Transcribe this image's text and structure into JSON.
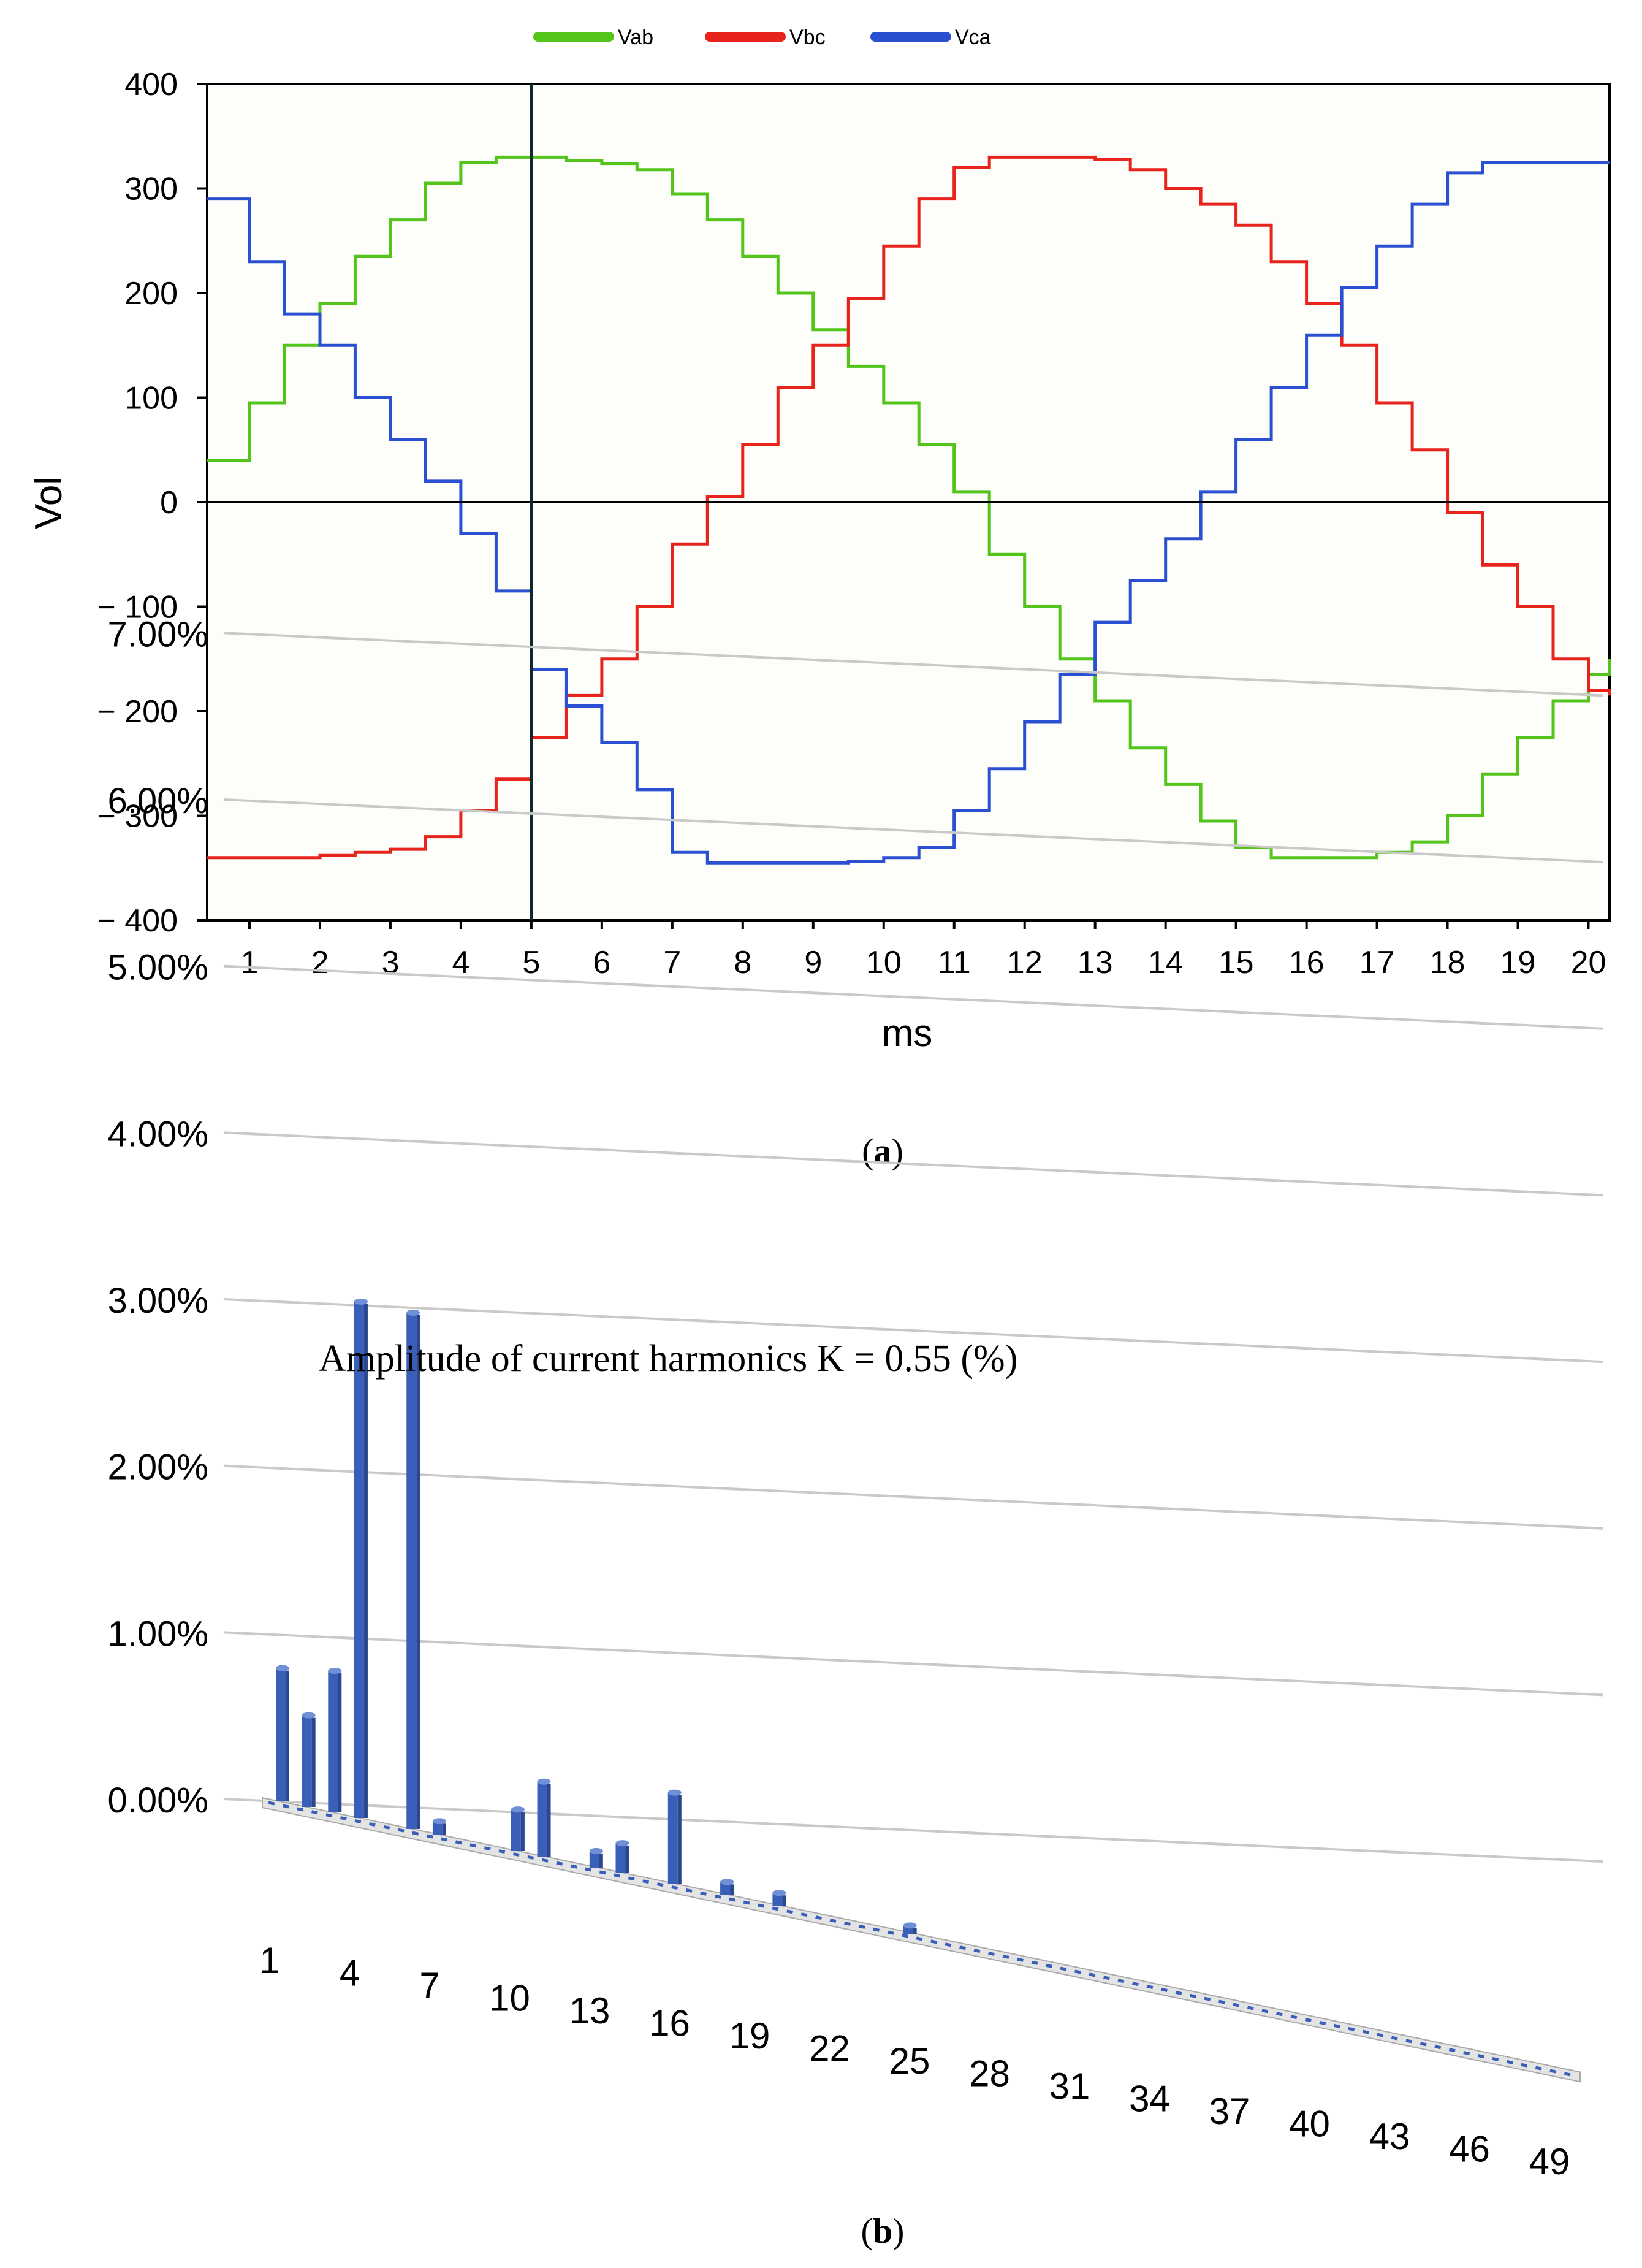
{
  "chart_data": [
    {
      "type": "line",
      "panel_label": "a",
      "title": "",
      "xlabel": "ms",
      "ylabel": "Vol",
      "xlim": [
        0.4,
        20.3
      ],
      "ylim": [
        -400,
        400
      ],
      "x_ticks": [
        "1",
        "2",
        "3",
        "4",
        "5",
        "6",
        "7",
        "8",
        "9",
        "10",
        "11",
        "12",
        "13",
        "14",
        "15",
        "16",
        "17",
        "18",
        "19",
        "20"
      ],
      "y_ticks": [
        "400",
        "300",
        "200",
        "100",
        "0",
        "− 100",
        "− 200",
        "− 300",
        "− 400"
      ],
      "y_tick_values": [
        400,
        300,
        200,
        100,
        0,
        -100,
        -200,
        -300,
        -400
      ],
      "cursor_x": 5,
      "zero_line": 0,
      "legend_position": "top-center",
      "series": [
        {
          "name": "Vab",
          "color": "#52c41a",
          "x": [
            0.4,
            1,
            1.5,
            2,
            2.5,
            3,
            3.5,
            4,
            4.5,
            5,
            5.5,
            6,
            6.5,
            7,
            7.5,
            8,
            8.5,
            9,
            9.5,
            10,
            10.5,
            11,
            11.5,
            12,
            12.5,
            13,
            13.5,
            14,
            14.5,
            15,
            15.5,
            16,
            16.5,
            17,
            17.5,
            18,
            18.5,
            19,
            19.5,
            20,
            20.3
          ],
          "y": [
            40,
            95,
            150,
            190,
            235,
            270,
            305,
            325,
            330,
            330,
            327,
            324,
            318,
            295,
            270,
            235,
            200,
            165,
            130,
            95,
            55,
            10,
            -50,
            -100,
            -150,
            -190,
            -235,
            -270,
            -305,
            -330,
            -340,
            -340,
            -340,
            -335,
            -325,
            -300,
            -260,
            -225,
            -190,
            -165,
            -150
          ]
        },
        {
          "name": "Vbc",
          "color": "#e8231c",
          "x": [
            0.4,
            1,
            1.5,
            2,
            2.5,
            3,
            3.5,
            4,
            4.5,
            5,
            5.5,
            6,
            6.5,
            7,
            7.5,
            8,
            8.5,
            9,
            9.5,
            10,
            10.5,
            11,
            11.5,
            12,
            12.5,
            13,
            13.5,
            14,
            14.5,
            15,
            15.5,
            16,
            16.5,
            17,
            17.5,
            18,
            18.5,
            19,
            19.5,
            20,
            20.3
          ],
          "y": [
            -340,
            -340,
            -340,
            -338,
            -335,
            -332,
            -320,
            -295,
            -265,
            -225,
            -185,
            -150,
            -100,
            -40,
            5,
            55,
            110,
            150,
            195,
            245,
            290,
            320,
            330,
            330,
            330,
            328,
            318,
            300,
            285,
            265,
            230,
            190,
            150,
            95,
            50,
            -10,
            -60,
            -100,
            -150,
            -180,
            -185
          ]
        },
        {
          "name": "Vca",
          "color": "#2a4fd0",
          "x": [
            0.4,
            1,
            1.5,
            2,
            2.5,
            3,
            3.5,
            4,
            4.5,
            5,
            5.5,
            6,
            6.5,
            7,
            7.5,
            8,
            8.5,
            9,
            9.5,
            10,
            10.5,
            11,
            11.5,
            12,
            12.5,
            13,
            13.5,
            14,
            14.5,
            15,
            15.5,
            16,
            16.5,
            17,
            17.5,
            18,
            18.5,
            19,
            19.5,
            20,
            20.3
          ],
          "y": [
            290,
            230,
            180,
            150,
            100,
            60,
            20,
            -30,
            -85,
            -160,
            -195,
            -230,
            -275,
            -335,
            -345,
            -345,
            -345,
            -345,
            -344,
            -340,
            -330,
            -295,
            -255,
            -210,
            -165,
            -115,
            -75,
            -35,
            10,
            60,
            110,
            160,
            205,
            245,
            285,
            315,
            325,
            325,
            325,
            325,
            325
          ]
        }
      ]
    },
    {
      "type": "bar",
      "panel_label": "b",
      "title": "",
      "annotation": "Amplitude of current harmonics K = 0.55 (%)",
      "xlabel": "",
      "ylabel": "",
      "ylim": [
        0,
        0.07
      ],
      "y_ticks": [
        "7.00%",
        "6.00%",
        "5.00%",
        "4.00%",
        "3.00%",
        "2.00%",
        "1.00%",
        "0.00%"
      ],
      "y_tick_values": [
        0.07,
        0.06,
        0.05,
        0.04,
        0.03,
        0.02,
        0.01,
        0.0
      ],
      "x_tick_labels": [
        "1",
        "4",
        "7",
        "10",
        "13",
        "16",
        "19",
        "22",
        "25",
        "28",
        "31",
        "34",
        "37",
        "40",
        "43",
        "46",
        "49"
      ],
      "series_color": "#3a5fb8",
      "categories": [
        "1",
        "2",
        "3",
        "4",
        "5",
        "6",
        "7",
        "8",
        "9",
        "10",
        "11",
        "12",
        "13",
        "14",
        "15",
        "16",
        "17",
        "18",
        "19",
        "20",
        "21",
        "22",
        "23",
        "24",
        "25",
        "26",
        "27",
        "28",
        "29",
        "30",
        "31",
        "32",
        "33",
        "34",
        "35",
        "36",
        "37",
        "38",
        "39",
        "40",
        "41",
        "42",
        "43",
        "44",
        "45",
        "46",
        "47",
        "48",
        "49",
        "50"
      ],
      "values": [
        0.008,
        0.0055,
        0.0085,
        0.031,
        0,
        0.031,
        0.0008,
        0,
        0,
        0.0025,
        0.0045,
        0,
        0.001,
        0.0018,
        0,
        0.0055,
        0,
        0.0008,
        0,
        0.0008,
        0,
        0,
        0,
        0,
        0.0005,
        0,
        0,
        0,
        0,
        0,
        0,
        0,
        0,
        0,
        0,
        0,
        0,
        0,
        0,
        0,
        0,
        0,
        0,
        0,
        0,
        0,
        0,
        0,
        0,
        0
      ]
    }
  ]
}
